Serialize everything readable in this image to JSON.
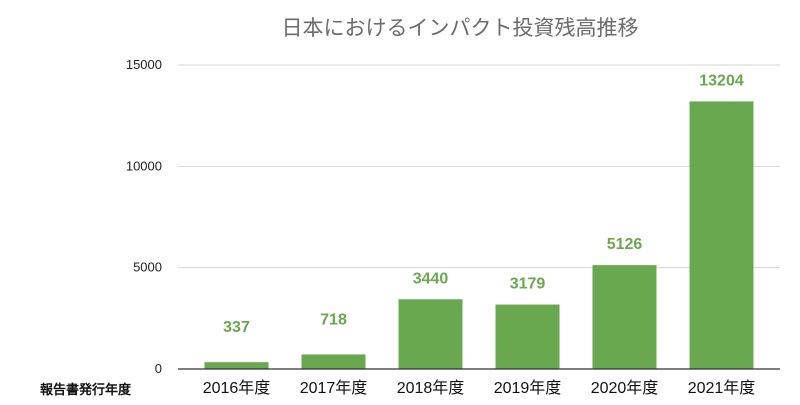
{
  "chart_data": {
    "type": "bar",
    "title": "日本におけるインパクト投資残高推移",
    "xlabel": "報告書発行年度",
    "ylabel": "",
    "categories": [
      "2016年度",
      "2017年度",
      "2018年度",
      "2019年度",
      "2020年度",
      "2021年度"
    ],
    "values": [
      337,
      718,
      3440,
      3179,
      5126,
      13204
    ],
    "ylim": [
      0,
      15000
    ],
    "yticks": [
      0,
      5000,
      10000,
      15000
    ],
    "grid": true,
    "legend": "none",
    "bar_color": "#6aa84f",
    "label_color": "#6aa84f"
  }
}
